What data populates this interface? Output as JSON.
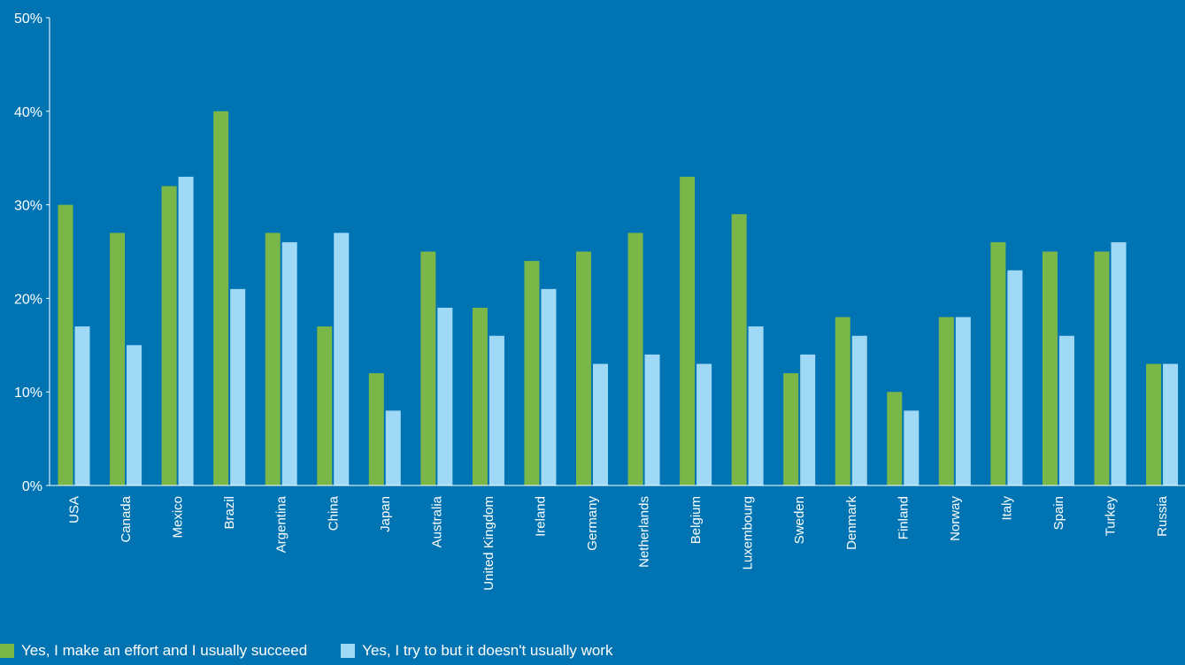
{
  "chart_data": {
    "type": "bar",
    "title": "",
    "xlabel": "",
    "ylabel": "",
    "ylim": [
      0,
      50
    ],
    "yticks": [
      "0%",
      "10%",
      "20%",
      "30%",
      "40%",
      "50%"
    ],
    "grid": false,
    "legend_position": "bottom-left",
    "categories": [
      "USA",
      "Canada",
      "Mexico",
      "Brazil",
      "Argentina",
      "China",
      "Japan",
      "Australia",
      "United Kingdom",
      "Ireland",
      "Germany",
      "Netherlands",
      "Belgium",
      "Luxembourg",
      "Sweden",
      "Denmark",
      "Finland",
      "Norway",
      "Italy",
      "Spain",
      "Turkey",
      "Russia"
    ],
    "series": [
      {
        "name": "Yes, I make an effort and I usually succeed",
        "color": "#7ab648",
        "values": [
          30,
          27,
          32,
          40,
          27,
          17,
          12,
          25,
          19,
          24,
          25,
          27,
          33,
          29,
          12,
          18,
          10,
          18,
          26,
          25,
          25,
          13
        ]
      },
      {
        "name": "Yes, I try to but it doesn't usually work",
        "color": "#9fd9f6",
        "values": [
          17,
          15,
          33,
          21,
          26,
          27,
          8,
          19,
          16,
          21,
          13,
          14,
          13,
          17,
          14,
          16,
          8,
          18,
          23,
          16,
          26,
          13
        ]
      }
    ]
  },
  "colors": {
    "background": "#0074b3",
    "axis": "#ffffff",
    "text": "#ffffff"
  }
}
